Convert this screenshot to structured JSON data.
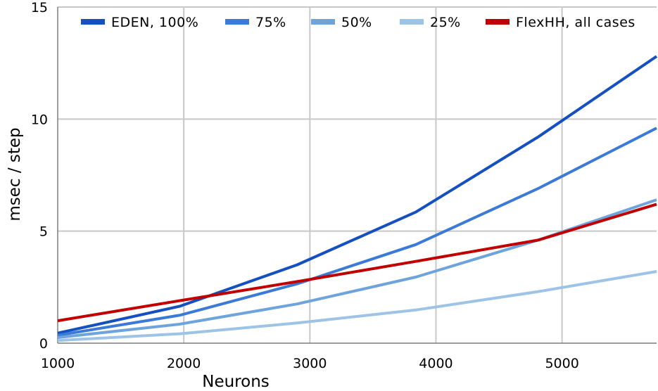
{
  "chart_data": {
    "type": "line",
    "title": "",
    "xlabel": "Neurons",
    "ylabel": "msec / step",
    "xlim": [
      1000,
      5750
    ],
    "ylim": [
      0,
      15
    ],
    "xticks": [
      1000,
      2000,
      3000,
      4000,
      5000
    ],
    "yticks": [
      0,
      5,
      10,
      15
    ],
    "grid": true,
    "legend_position": "top",
    "series": [
      {
        "name": "EDEN, 100%",
        "color": "#1450c0",
        "x": [
          1000,
          1970,
          2900,
          3840,
          4810,
          5750
        ],
        "y": [
          0.45,
          1.65,
          3.5,
          5.85,
          9.2,
          12.8
        ]
      },
      {
        "name": "75%",
        "color": "#3b7ad6",
        "x": [
          1000,
          1970,
          2900,
          3840,
          4810,
          5750
        ],
        "y": [
          0.35,
          1.25,
          2.65,
          4.4,
          6.9,
          9.6
        ]
      },
      {
        "name": "50%",
        "color": "#6ea4dc",
        "x": [
          1000,
          1970,
          2900,
          3840,
          4810,
          5750
        ],
        "y": [
          0.25,
          0.85,
          1.75,
          2.95,
          4.6,
          6.4
        ]
      },
      {
        "name": "25%",
        "color": "#9dc3e6",
        "x": [
          1000,
          1970,
          2900,
          3840,
          4810,
          5750
        ],
        "y": [
          0.12,
          0.42,
          0.9,
          1.48,
          2.3,
          3.2
        ]
      },
      {
        "name": "FlexHH, all cases",
        "color": "#c00000",
        "x": [
          1000,
          1970,
          2900,
          3840,
          4810,
          5750
        ],
        "y": [
          1.0,
          1.9,
          2.75,
          3.65,
          4.6,
          6.2
        ]
      }
    ]
  }
}
